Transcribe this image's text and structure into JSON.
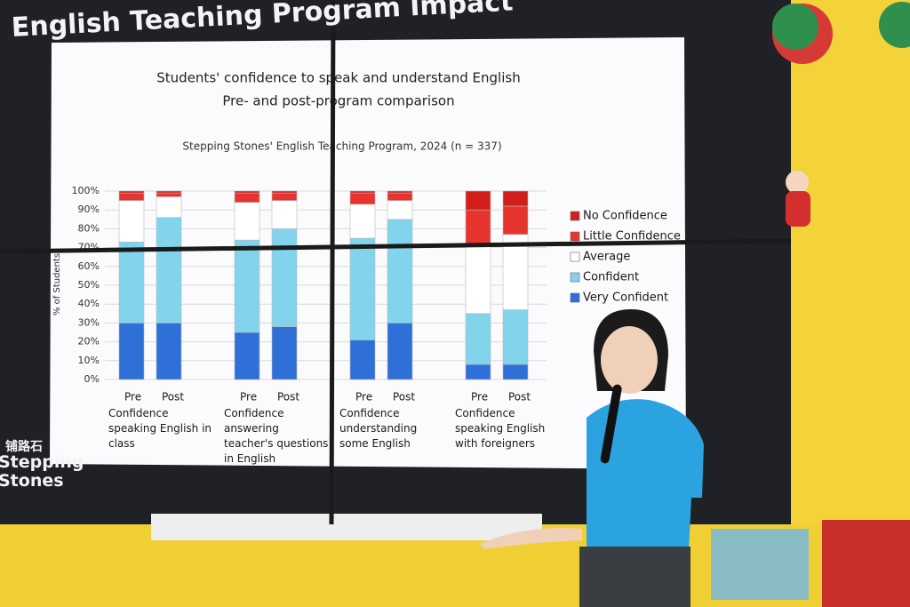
{
  "slide": {
    "title": "English Teaching Program Impact",
    "logo_cn": "铺路石",
    "logo_en": "Stepping Stones"
  },
  "chart_data": {
    "type": "stacked_bar",
    "title": "Students' confidence to speak and understand English",
    "subtitle": "Pre- and post-program comparison",
    "note": "Stepping Stones' English Teaching Program, 2024 (n = 337)",
    "y_label": "% of Students",
    "groups": [
      "Confidence speaking English in class",
      "Confidence answering teacher's questions in English",
      "Confidence understanding some English",
      "Confidence speaking English with foreigners"
    ],
    "categories": [
      "Pre",
      "Post",
      "Pre",
      "Post",
      "Pre",
      "Post",
      "Pre",
      "Post"
    ],
    "series": [
      {
        "name": "Very Confident",
        "color": "#2f6fd8",
        "values": [
          30,
          30,
          25,
          28,
          21,
          30,
          8,
          8
        ]
      },
      {
        "name": "Confident",
        "color": "#82d4ec",
        "values": [
          43,
          56,
          49,
          52,
          54,
          55,
          27,
          29
        ]
      },
      {
        "name": "Average",
        "color": "#ffffff",
        "values": [
          22,
          11,
          20,
          15,
          18,
          10,
          37,
          40
        ]
      },
      {
        "name": "Little Confidence",
        "color": "#e8342f",
        "values": [
          4,
          2,
          5,
          4,
          6,
          4,
          18,
          15
        ]
      },
      {
        "name": "No Confidence",
        "color": "#d21f1c",
        "values": [
          1,
          1,
          1,
          1,
          1,
          1,
          10,
          8
        ]
      }
    ],
    "ylim": [
      0,
      100
    ],
    "yticks": [
      {
        "value": 0,
        "label": "0%"
      },
      {
        "value": 10,
        "label": "10%"
      },
      {
        "value": 20,
        "label": "20%"
      },
      {
        "value": 30,
        "label": "30%"
      },
      {
        "value": 40,
        "label": "40%"
      },
      {
        "value": 50,
        "label": "50%"
      },
      {
        "value": 60,
        "label": "60%"
      },
      {
        "value": 70,
        "label": "70%"
      },
      {
        "value": 80,
        "label": "80%"
      },
      {
        "value": 90,
        "label": "90%"
      },
      {
        "value": 100,
        "label": "100%"
      }
    ],
    "grid": true,
    "legend": "right"
  }
}
